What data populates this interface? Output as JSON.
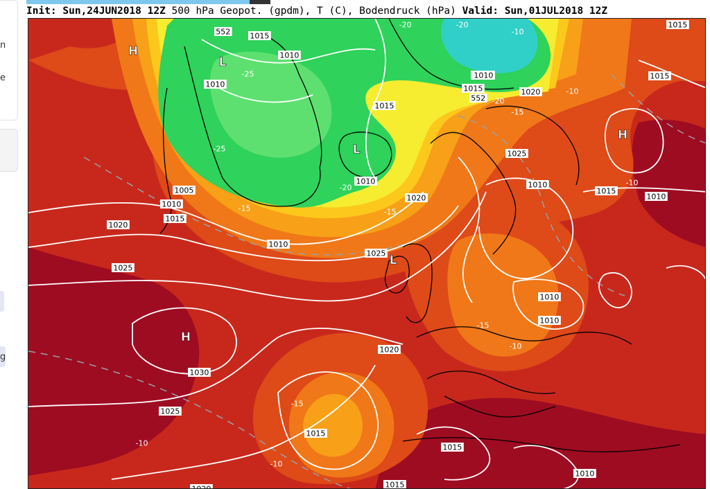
{
  "header": {
    "init_label": "Init:",
    "init_value": "Sun,24JUN2018 12Z",
    "variables": "500 hPa Geopot. (gpdm), T (C), Bodendruck (hPa)",
    "valid_label": "Valid:",
    "valid_value": "Sun,01JUL2018 12Z"
  },
  "sidebar_fragments": [
    "n",
    "e",
    "g"
  ],
  "palette": {
    "deep_red": "#9e0c22",
    "red": "#c8281c",
    "red_orange": "#de4a18",
    "orange": "#f07818",
    "light_orange": "#f8a018",
    "yellow_orange": "#fcc81c",
    "yellow": "#f6ec30",
    "green": "#2fd25a",
    "light_green": "#5ee070",
    "cyan": "#30d0c8",
    "isobar": "#ffffff",
    "coast": "#000000"
  },
  "pressure_centers": [
    {
      "symbol": "H",
      "place": "Greenland west coast"
    },
    {
      "symbol": "L",
      "place": "Greenland north"
    },
    {
      "symbol": "L",
      "place": "Iceland"
    },
    {
      "symbol": "L",
      "place": "Ireland"
    },
    {
      "symbol": "H",
      "place": "Azores"
    },
    {
      "symbol": "H",
      "place": "Northern Russia"
    }
  ],
  "isobar_labels": [
    "552",
    "1015",
    "1010",
    "1010",
    "1010",
    "1015",
    "1010",
    "1005",
    "1010",
    "1015",
    "1020",
    "1025",
    "1030",
    "1025",
    "1020",
    "1020",
    "1025",
    "1015",
    "1010",
    "1015",
    "1010",
    "1015",
    "1020",
    "1025",
    "1010",
    "1015",
    "1010",
    "1015",
    "1010",
    "1015",
    "1010",
    "552",
    "1010",
    "1020",
    "1015"
  ],
  "temperature_labels": [
    "-25",
    "-25",
    "-20",
    "-20",
    "-15",
    "-15",
    "-15",
    "-15",
    "-10",
    "-10",
    "-10",
    "-15",
    "-20",
    "-10",
    "-10",
    "-20",
    "-10"
  ]
}
